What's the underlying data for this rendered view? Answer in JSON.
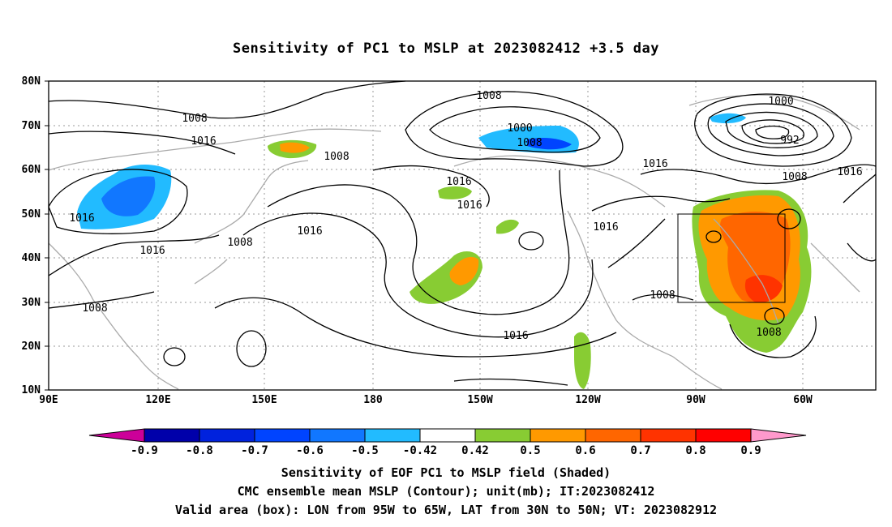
{
  "title": "Sensitivity of PC1 to MSLP at 2023082412 +3.5 day",
  "map": {
    "lat_labels": [
      "80N",
      "70N",
      "60N",
      "50N",
      "40N",
      "30N",
      "20N",
      "10N"
    ],
    "lon_labels": [
      "90E",
      "120E",
      "150E",
      "180",
      "150W",
      "120W",
      "90W",
      "60W"
    ],
    "contour_labels": [
      "1008",
      "1008",
      "1000",
      "1008",
      "1016",
      "1016",
      "1000",
      "992",
      "1016",
      "1008",
      "1016",
      "1016",
      "1016",
      "1016",
      "1008",
      "1016",
      "1016",
      "1008",
      "1008",
      "1016",
      "1008",
      "1008"
    ],
    "valid_box": {
      "lon_min": -95,
      "lon_max": -65,
      "lat_min": 30,
      "lat_max": 50
    }
  },
  "colorbar": {
    "labels": [
      "-0.9",
      "-0.8",
      "-0.7",
      "-0.6",
      "-0.5",
      "-0.42",
      "0.42",
      "0.5",
      "0.6",
      "0.7",
      "0.8",
      "0.9"
    ],
    "colors": [
      "#cc0099",
      "#0000aa",
      "#0022dd",
      "#0044ff",
      "#1177ff",
      "#22bbff",
      "#ffffff",
      "#88cc33",
      "#ff9900",
      "#ff6600",
      "#ff3300",
      "#ff0000",
      "#ff99cc"
    ]
  },
  "captions": {
    "line1": "Sensitivity of EOF PC1 to MSLP field (Shaded)",
    "line2": "CMC ensemble mean MSLP (Contour); unit(mb); IT:2023082412",
    "line3": "Valid area (box): LON from 95W to 65W, LAT from 30N to 50N; VT: 2023082912"
  }
}
